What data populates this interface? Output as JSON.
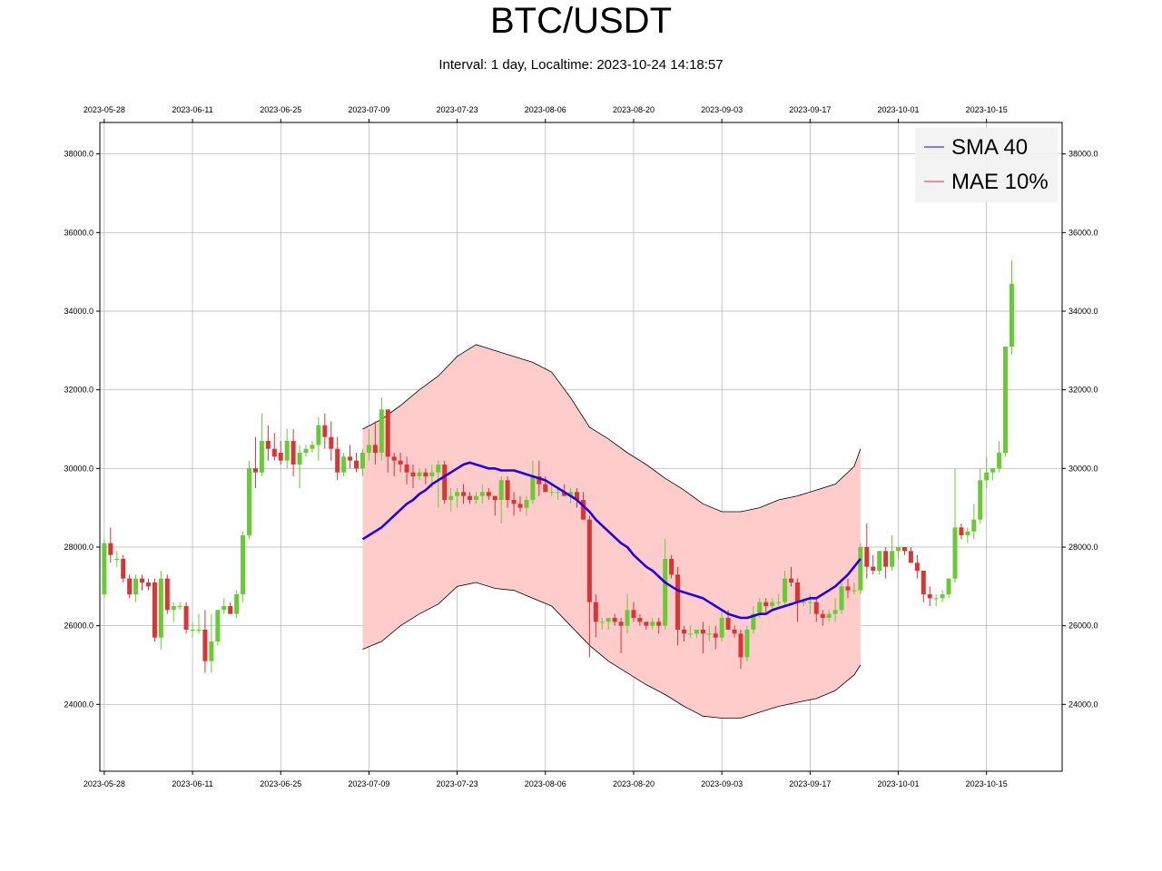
{
  "title": "BTC/USDT",
  "subtitle": "Interval: 1 day, Localtime: 2023-10-24 14:18:57",
  "colors": {
    "up": "#66cc33",
    "down": "#dd3333",
    "sma": "#2200dd",
    "envelope_line": "#000000",
    "envelope_fill": "#ffcccc",
    "grid": "#b0b0b0"
  },
  "chart_data": {
    "type": "candlestick",
    "title": "BTC/USDT",
    "subtitle": "Interval: 1 day, Localtime: 2023-10-24 14:18:57",
    "x_start": "2023-05-28",
    "x_range": [
      "2023-05-27",
      "2023-10-27"
    ],
    "ylim": [
      22300,
      38800
    ],
    "x_tick_labels": [
      "2023-05-28",
      "2023-06-11",
      "2023-06-25",
      "2023-07-09",
      "2023-07-23",
      "2023-08-06",
      "2023-08-20",
      "2023-09-03",
      "2023-09-17",
      "2023-10-01",
      "2023-10-15"
    ],
    "y_ticks": [
      24000,
      26000,
      28000,
      30000,
      32000,
      34000,
      36000,
      38000
    ],
    "y_tick_labels": [
      "24000.0",
      "26000.0",
      "28000.0",
      "30000.0",
      "32000.0",
      "34000.0",
      "36000.0",
      "38000.0"
    ],
    "grid": true,
    "legend": {
      "position": "top-right",
      "entries": [
        {
          "label": "SMA 40",
          "color": "#2200dd"
        },
        {
          "label": "MAE 10%",
          "color": "#dd3333"
        }
      ]
    },
    "ohlc": [
      [
        26800,
        28200,
        26700,
        28100
      ],
      [
        28100,
        28500,
        27600,
        27800
      ],
      [
        27700,
        27900,
        27500,
        27700
      ],
      [
        27700,
        27800,
        27100,
        27200
      ],
      [
        27200,
        27300,
        26700,
        26800
      ],
      [
        26800,
        27300,
        26600,
        27200
      ],
      [
        27200,
        27300,
        26900,
        27100
      ],
      [
        27100,
        27200,
        26900,
        27000
      ],
      [
        27100,
        27200,
        25600,
        25700
      ],
      [
        25700,
        27400,
        25400,
        27200
      ],
      [
        27200,
        27300,
        26300,
        26400
      ],
      [
        26400,
        26600,
        26100,
        26500
      ],
      [
        26500,
        26600,
        26400,
        26500
      ],
      [
        26500,
        26600,
        25800,
        25900
      ],
      [
        25900,
        26100,
        25700,
        25900
      ],
      [
        25900,
        26300,
        25800,
        25900
      ],
      [
        25900,
        26400,
        24800,
        25100
      ],
      [
        25100,
        26300,
        24800,
        25600
      ],
      [
        25600,
        26400,
        25500,
        26400
      ],
      [
        26400,
        26700,
        26300,
        26500
      ],
      [
        26500,
        26600,
        26300,
        26300
      ],
      [
        26300,
        26900,
        26200,
        26800
      ],
      [
        26800,
        28400,
        26600,
        28300
      ],
      [
        28300,
        30200,
        28200,
        30000
      ],
      [
        30000,
        30800,
        29500,
        29900
      ],
      [
        29900,
        31400,
        29800,
        30700
      ],
      [
        30700,
        31100,
        30200,
        30500
      ],
      [
        30500,
        30900,
        30200,
        30300
      ],
      [
        30400,
        30700,
        30100,
        30200
      ],
      [
        30200,
        31000,
        30000,
        30700
      ],
      [
        30700,
        31000,
        29800,
        30100
      ],
      [
        30100,
        30600,
        29500,
        30400
      ],
      [
        30400,
        30600,
        30300,
        30500
      ],
      [
        30500,
        30700,
        30400,
        30600
      ],
      [
        30600,
        31300,
        30200,
        31100
      ],
      [
        31100,
        31400,
        30500,
        30800
      ],
      [
        30800,
        31200,
        30200,
        30500
      ],
      [
        30500,
        30800,
        29700,
        29900
      ],
      [
        29900,
        30400,
        29800,
        30300
      ],
      [
        30300,
        30600,
        30000,
        30200
      ],
      [
        30200,
        30400,
        29900,
        30000
      ],
      [
        30000,
        30500,
        29800,
        30400
      ],
      [
        30400,
        31000,
        30200,
        30600
      ],
      [
        30600,
        31200,
        30100,
        30400
      ],
      [
        30400,
        31800,
        30200,
        31500
      ],
      [
        31500,
        31500,
        29900,
        30300
      ],
      [
        30300,
        30400,
        29800,
        30200
      ],
      [
        30200,
        30400,
        29900,
        30100
      ],
      [
        30100,
        30300,
        29600,
        29900
      ],
      [
        29900,
        30100,
        29500,
        29800
      ],
      [
        29800,
        30000,
        29700,
        29900
      ],
      [
        29900,
        30000,
        29600,
        29800
      ],
      [
        29800,
        30100,
        29500,
        29900
      ],
      [
        29900,
        30200,
        29000,
        30100
      ],
      [
        30100,
        30200,
        29100,
        29200
      ],
      [
        29200,
        29500,
        28900,
        29300
      ],
      [
        29300,
        29500,
        29000,
        29400
      ],
      [
        29400,
        29600,
        29100,
        29300
      ],
      [
        29300,
        29400,
        29100,
        29200
      ],
      [
        29200,
        29400,
        29100,
        29300
      ],
      [
        29300,
        29600,
        29100,
        29400
      ],
      [
        29400,
        29500,
        29200,
        29300
      ],
      [
        29300,
        29300,
        28800,
        29200
      ],
      [
        29200,
        29800,
        28600,
        29700
      ],
      [
        29700,
        29800,
        29000,
        29200
      ],
      [
        29200,
        29400,
        28800,
        29100
      ],
      [
        29100,
        29300,
        28900,
        29000
      ],
      [
        29000,
        29300,
        28800,
        29200
      ],
      [
        29200,
        30200,
        29100,
        29800
      ],
      [
        29800,
        30200,
        29300,
        29600
      ],
      [
        29600,
        29800,
        29400,
        29400
      ],
      [
        29400,
        29600,
        29300,
        29400
      ],
      [
        29400,
        29500,
        29200,
        29400
      ],
      [
        29400,
        29600,
        29300,
        29300
      ],
      [
        29300,
        29500,
        29100,
        29400
      ],
      [
        29400,
        29500,
        29000,
        29200
      ],
      [
        29200,
        29400,
        28700,
        28700
      ],
      [
        28700,
        28800,
        25200,
        26600
      ],
      [
        26600,
        26800,
        25700,
        26100
      ],
      [
        26100,
        26200,
        25900,
        26100
      ],
      [
        26100,
        26200,
        25900,
        26200
      ],
      [
        26200,
        26300,
        26000,
        26100
      ],
      [
        26100,
        26200,
        25300,
        26000
      ],
      [
        26000,
        26800,
        25800,
        26400
      ],
      [
        26400,
        26600,
        26100,
        26200
      ],
      [
        26200,
        26300,
        26000,
        26100
      ],
      [
        26100,
        26100,
        25900,
        26000
      ],
      [
        26000,
        26200,
        25900,
        26100
      ],
      [
        26100,
        26200,
        25800,
        26000
      ],
      [
        26000,
        28200,
        25900,
        27700
      ],
      [
        27700,
        27800,
        27200,
        27300
      ],
      [
        27300,
        27500,
        25500,
        25900
      ],
      [
        25900,
        26000,
        25600,
        25800
      ],
      [
        25800,
        26000,
        25700,
        25800
      ],
      [
        25800,
        25900,
        25700,
        25900
      ],
      [
        25900,
        26100,
        25300,
        25800
      ],
      [
        25800,
        26000,
        25600,
        25800
      ],
      [
        25800,
        26000,
        25400,
        25700
      ],
      [
        25700,
        26400,
        25600,
        26200
      ],
      [
        26200,
        26400,
        25900,
        25900
      ],
      [
        25900,
        26000,
        25700,
        25800
      ],
      [
        25800,
        25900,
        24900,
        25200
      ],
      [
        25200,
        26000,
        25100,
        25900
      ],
      [
        25900,
        26500,
        25800,
        26300
      ],
      [
        26300,
        26700,
        26200,
        26600
      ],
      [
        26600,
        26700,
        26300,
        26500
      ],
      [
        26500,
        26700,
        26400,
        26600
      ],
      [
        26600,
        26800,
        26500,
        26600
      ],
      [
        26600,
        27400,
        26500,
        27200
      ],
      [
        27200,
        27500,
        27000,
        27100
      ],
      [
        27100,
        27200,
        26100,
        26600
      ],
      [
        26600,
        26700,
        26500,
        26600
      ],
      [
        26600,
        26800,
        26300,
        26600
      ],
      [
        26600,
        26700,
        26100,
        26300
      ],
      [
        26300,
        26400,
        26000,
        26200
      ],
      [
        26200,
        26400,
        26100,
        26300
      ],
      [
        26300,
        26700,
        26100,
        26400
      ],
      [
        26400,
        27100,
        26300,
        27000
      ],
      [
        27000,
        27200,
        26700,
        26900
      ],
      [
        26900,
        27100,
        26800,
        26900
      ],
      [
        26900,
        28100,
        26800,
        28000
      ],
      [
        28000,
        28600,
        27200,
        27500
      ],
      [
        27500,
        27800,
        27300,
        27400
      ],
      [
        27400,
        27900,
        27300,
        27900
      ],
      [
        27900,
        28000,
        27200,
        27500
      ],
      [
        27500,
        28300,
        27400,
        27900
      ],
      [
        27900,
        28000,
        27700,
        28000
      ],
      [
        28000,
        28000,
        27800,
        27900
      ],
      [
        27900,
        28000,
        27600,
        27600
      ],
      [
        27600,
        27800,
        27200,
        27400
      ],
      [
        27400,
        27400,
        26600,
        26800
      ],
      [
        26800,
        27000,
        26500,
        26700
      ],
      [
        26700,
        26800,
        26500,
        26700
      ],
      [
        26700,
        26900,
        26600,
        26800
      ],
      [
        26800,
        27100,
        26700,
        27200
      ],
      [
        27200,
        30000,
        27100,
        28500
      ],
      [
        28500,
        28600,
        28200,
        28300
      ],
      [
        28300,
        28500,
        28100,
        28400
      ],
      [
        28400,
        29100,
        28200,
        28700
      ],
      [
        28700,
        30000,
        28600,
        29700
      ],
      [
        29700,
        30300,
        29500,
        29900
      ],
      [
        29900,
        30000,
        29700,
        30000
      ],
      [
        30000,
        30700,
        29900,
        30400
      ],
      [
        30400,
        33000,
        30300,
        33100
      ],
      [
        33100,
        35300,
        32900,
        34700
      ]
    ],
    "sma_40": [
      [
        41,
        28200
      ],
      [
        42,
        28300
      ],
      [
        43,
        28400
      ],
      [
        44,
        28500
      ],
      [
        45,
        28650
      ],
      [
        46,
        28800
      ],
      [
        47,
        28950
      ],
      [
        48,
        29100
      ],
      [
        49,
        29200
      ],
      [
        50,
        29350
      ],
      [
        51,
        29450
      ],
      [
        52,
        29600
      ],
      [
        53,
        29700
      ],
      [
        54,
        29800
      ],
      [
        55,
        29900
      ],
      [
        56,
        30000
      ],
      [
        57,
        30100
      ],
      [
        58,
        30150
      ],
      [
        59,
        30100
      ],
      [
        60,
        30050
      ],
      [
        61,
        30000
      ],
      [
        62,
        30000
      ],
      [
        63,
        29950
      ],
      [
        64,
        29950
      ],
      [
        65,
        29950
      ],
      [
        66,
        29900
      ],
      [
        67,
        29850
      ],
      [
        68,
        29800
      ],
      [
        69,
        29750
      ],
      [
        70,
        29700
      ],
      [
        71,
        29600
      ],
      [
        72,
        29500
      ],
      [
        73,
        29400
      ],
      [
        74,
        29300
      ],
      [
        75,
        29200
      ],
      [
        76,
        29050
      ],
      [
        77,
        28900
      ],
      [
        78,
        28700
      ],
      [
        79,
        28550
      ],
      [
        80,
        28400
      ],
      [
        81,
        28250
      ],
      [
        82,
        28100
      ],
      [
        83,
        28000
      ],
      [
        84,
        27800
      ],
      [
        85,
        27650
      ],
      [
        86,
        27500
      ],
      [
        87,
        27400
      ],
      [
        88,
        27250
      ],
      [
        89,
        27100
      ],
      [
        90,
        27000
      ],
      [
        91,
        26900
      ],
      [
        92,
        26850
      ],
      [
        93,
        26800
      ],
      [
        94,
        26750
      ],
      [
        95,
        26700
      ],
      [
        96,
        26600
      ],
      [
        97,
        26500
      ],
      [
        98,
        26400
      ],
      [
        99,
        26300
      ],
      [
        100,
        26250
      ],
      [
        101,
        26200
      ],
      [
        102,
        26200
      ],
      [
        103,
        26250
      ],
      [
        104,
        26300
      ],
      [
        105,
        26300
      ],
      [
        106,
        26400
      ],
      [
        107,
        26450
      ],
      [
        108,
        26500
      ],
      [
        109,
        26550
      ],
      [
        110,
        26600
      ],
      [
        111,
        26650
      ],
      [
        112,
        26700
      ],
      [
        113,
        26700
      ],
      [
        114,
        26800
      ],
      [
        115,
        26900
      ],
      [
        116,
        27000
      ],
      [
        117,
        27150
      ],
      [
        118,
        27300
      ],
      [
        119,
        27500
      ],
      [
        120,
        27700
      ]
    ],
    "mae_upper": [
      [
        41,
        31000
      ],
      [
        44,
        31250
      ],
      [
        47,
        31600
      ],
      [
        50,
        32000
      ],
      [
        53,
        32350
      ],
      [
        56,
        32850
      ],
      [
        59,
        33150
      ],
      [
        62,
        33000
      ],
      [
        65,
        32850
      ],
      [
        68,
        32700
      ],
      [
        71,
        32450
      ],
      [
        74,
        31800
      ],
      [
        77,
        31050
      ],
      [
        80,
        30750
      ],
      [
        83,
        30400
      ],
      [
        86,
        30100
      ],
      [
        89,
        29750
      ],
      [
        92,
        29450
      ],
      [
        95,
        29100
      ],
      [
        98,
        28900
      ],
      [
        101,
        28900
      ],
      [
        104,
        29000
      ],
      [
        107,
        29200
      ],
      [
        110,
        29300
      ],
      [
        113,
        29450
      ],
      [
        116,
        29600
      ],
      [
        119,
        30050
      ],
      [
        120,
        30500
      ]
    ],
    "mae_lower": [
      [
        41,
        25400
      ],
      [
        44,
        25600
      ],
      [
        47,
        26000
      ],
      [
        50,
        26300
      ],
      [
        53,
        26550
      ],
      [
        56,
        27000
      ],
      [
        59,
        27100
      ],
      [
        62,
        26950
      ],
      [
        65,
        26900
      ],
      [
        68,
        26700
      ],
      [
        71,
        26500
      ],
      [
        74,
        26000
      ],
      [
        77,
        25500
      ],
      [
        80,
        25100
      ],
      [
        83,
        24800
      ],
      [
        86,
        24500
      ],
      [
        89,
        24250
      ],
      [
        92,
        23950
      ],
      [
        95,
        23700
      ],
      [
        98,
        23650
      ],
      [
        101,
        23650
      ],
      [
        104,
        23800
      ],
      [
        107,
        23950
      ],
      [
        110,
        24050
      ],
      [
        113,
        24150
      ],
      [
        116,
        24350
      ],
      [
        119,
        24750
      ],
      [
        120,
        25000
      ]
    ]
  }
}
